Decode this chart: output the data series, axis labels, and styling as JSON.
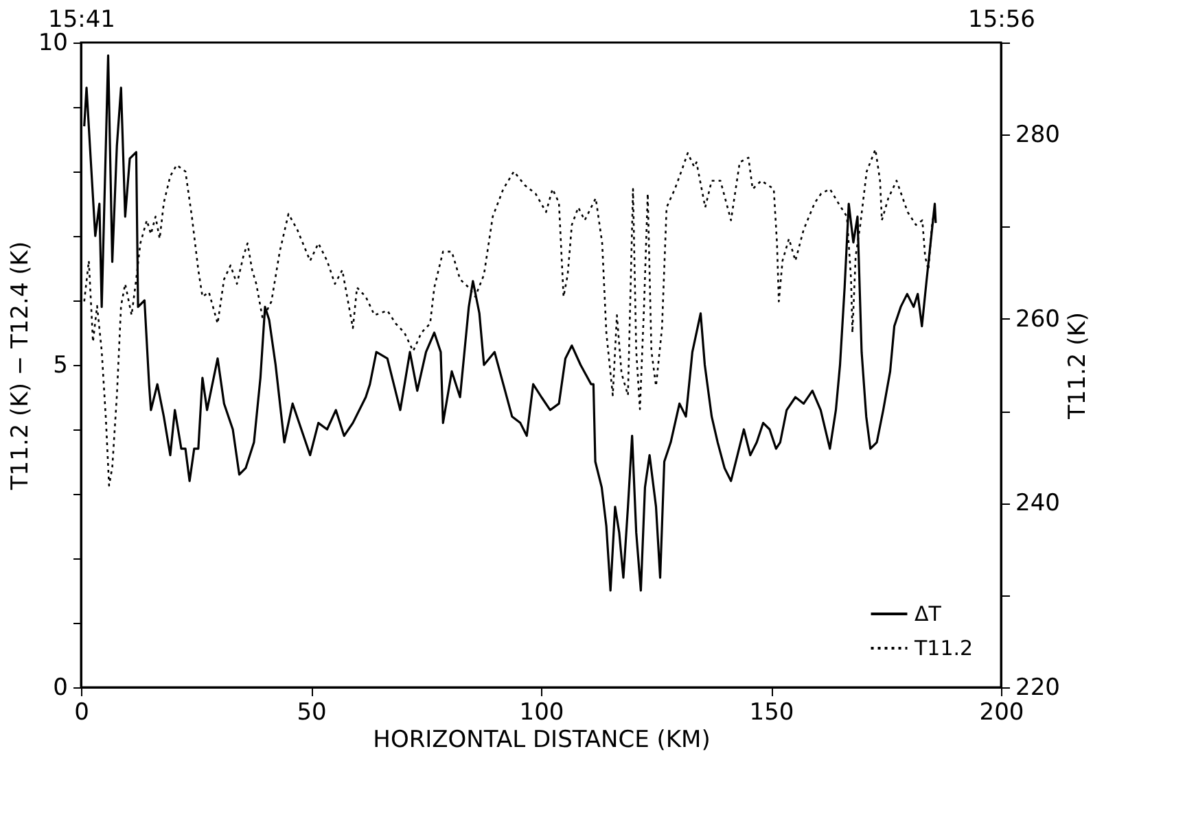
{
  "chart_data": {
    "type": "line",
    "xlabel": "HORIZONTAL DISTANCE (KM)",
    "ylabel": "T11.2 (K) − T12.4 (K)",
    "y2label": "T11.2 (K)",
    "xlim": [
      0,
      200
    ],
    "xticks": [
      0,
      50,
      100,
      150,
      200
    ],
    "x2lim": [
      15.6833,
      15.9333
    ],
    "x2ticks": [
      {
        "value": 15.6833,
        "label": "15:41"
      },
      {
        "value": 15.9333,
        "label": "15:56"
      }
    ],
    "ylim": [
      0,
      10
    ],
    "yticks": [
      0,
      {
        "value": 1,
        "label": null
      },
      {
        "value": 2,
        "label": null
      },
      {
        "value": 3,
        "label": null
      },
      {
        "value": 4,
        "label": null
      },
      5,
      {
        "value": 6,
        "label": null
      },
      {
        "value": 7,
        "label": null
      },
      {
        "value": 8,
        "label": null
      },
      {
        "value": 9,
        "label": null
      },
      10
    ],
    "y2lim": [
      220,
      290
    ],
    "y2ticks": [
      220,
      {
        "value": 230,
        "label": null
      },
      240,
      {
        "value": 250,
        "label": null
      },
      260,
      {
        "value": 270,
        "label": null
      },
      280,
      {
        "value": 290,
        "label": null
      }
    ],
    "grid": false,
    "legend": "bottom right",
    "series": [
      {
        "name": "ΔT",
        "color": "#000000",
        "line_style": "solid",
        "x": [
          0.7,
          1.2,
          2.1,
          3.1,
          4.0,
          4.5,
          5.9,
          6.8,
          7.8,
          8.7,
          9.6,
          10.6,
          12.0,
          12.4,
          13.8,
          14.8,
          15.2,
          16.6,
          18.0,
          19.4,
          20.4,
          21.8,
          22.7,
          23.6,
          24.6,
          25.5,
          26.4,
          27.4,
          29.7,
          31.1,
          33.0,
          34.4,
          35.8,
          37.6,
          39.0,
          40.0,
          40.9,
          42.3,
          44.2,
          46.0,
          47.9,
          49.8,
          51.6,
          53.5,
          55.4,
          57.2,
          59.1,
          61.9,
          62.8,
          64.2,
          66.6,
          69.4,
          71.5,
          73.1,
          75.0,
          76.8,
          78.2,
          78.7,
          80.6,
          82.4,
          84.3,
          85.2,
          86.6,
          87.6,
          89.9,
          91.8,
          93.7,
          95.5,
          96.9,
          98.3,
          100.1,
          102.0,
          103.9,
          105.3,
          106.7,
          108.6,
          110.9,
          111.4,
          111.8,
          113.2,
          114.2,
          115.1,
          116.1,
          117.0,
          117.9,
          118.9,
          119.8,
          120.7,
          121.7,
          122.6,
          123.6,
          125.0,
          125.9,
          126.8,
          128.2,
          130.1,
          131.5,
          132.9,
          134.7,
          135.6,
          137.1,
          138.4,
          139.9,
          141.3,
          142.7,
          144.1,
          145.5,
          146.9,
          148.3,
          149.7,
          151.1,
          152.0,
          153.4,
          155.3,
          157.1,
          159.0,
          160.8,
          162.8,
          164.1,
          165.0,
          166.0,
          166.9,
          167.9,
          168.8,
          169.7,
          170.7,
          171.6,
          173.0,
          174.4,
          175.9,
          176.8,
          178.2,
          179.6,
          181.0,
          181.9,
          182.8,
          183.8,
          184.7,
          185.6,
          185.8
        ],
        "values": [
          8.7,
          9.3,
          8.2,
          7.0,
          7.5,
          5.9,
          9.8,
          6.6,
          8.4,
          9.3,
          7.3,
          8.2,
          8.3,
          5.9,
          6.0,
          4.7,
          4.3,
          4.7,
          4.2,
          3.6,
          4.3,
          3.7,
          3.7,
          3.2,
          3.7,
          3.7,
          4.8,
          4.3,
          5.1,
          4.4,
          4.0,
          3.3,
          3.4,
          3.8,
          4.8,
          5.9,
          5.7,
          5.0,
          3.8,
          4.4,
          4.0,
          3.6,
          4.1,
          4.0,
          4.3,
          3.9,
          4.1,
          4.5,
          4.7,
          5.2,
          5.1,
          4.3,
          5.2,
          4.6,
          5.2,
          5.5,
          5.2,
          4.1,
          4.9,
          4.5,
          5.9,
          6.3,
          5.8,
          5.0,
          5.2,
          4.7,
          4.2,
          4.1,
          3.9,
          4.7,
          4.5,
          4.3,
          4.4,
          5.1,
          5.3,
          5.0,
          4.7,
          4.7,
          3.5,
          3.1,
          2.5,
          1.5,
          2.8,
          2.4,
          1.7,
          2.8,
          3.9,
          2.4,
          1.5,
          3.1,
          3.6,
          2.8,
          1.7,
          3.5,
          3.8,
          4.4,
          4.2,
          5.2,
          5.8,
          5.0,
          4.2,
          3.8,
          3.4,
          3.2,
          3.6,
          4.0,
          3.6,
          3.8,
          4.1,
          4.0,
          3.7,
          3.8,
          4.3,
          4.5,
          4.4,
          4.6,
          4.3,
          3.7,
          4.3,
          5.0,
          6.2,
          7.5,
          6.9,
          7.3,
          5.2,
          4.2,
          3.7,
          3.8,
          4.3,
          4.9,
          5.6,
          5.9,
          6.1,
          5.9,
          6.1,
          5.6,
          6.3,
          6.9,
          7.5,
          7.2
        ]
      },
      {
        "name": "T11.2",
        "color": "#000000",
        "line_style": "dotted",
        "axis": "y2",
        "x": [
          0.7,
          1.7,
          2.6,
          3.5,
          4.5,
          5.4,
          6.1,
          6.8,
          7.8,
          8.7,
          9.6,
          11.0,
          12.0,
          12.9,
          14.3,
          15.2,
          16.2,
          17.1,
          18.0,
          19.4,
          20.8,
          22.7,
          24.1,
          25.5,
          26.4,
          27.8,
          29.7,
          31.1,
          32.5,
          33.9,
          35.3,
          36.2,
          37.2,
          38.1,
          39.5,
          41.4,
          43.2,
          45.1,
          47.0,
          49.8,
          51.6,
          53.5,
          55.2,
          56.8,
          59.1,
          60.0,
          61.9,
          63.8,
          66.6,
          68.4,
          70.3,
          72.2,
          74.0,
          75.9,
          76.8,
          78.7,
          80.6,
          82.4,
          84.3,
          85.7,
          87.6,
          89.5,
          91.8,
          94.1,
          96.5,
          98.8,
          101.1,
          102.5,
          103.9,
          104.9,
          105.8,
          106.7,
          108.1,
          109.5,
          111.9,
          113.3,
          114.2,
          115.6,
          116.5,
          117.5,
          118.9,
          120.0,
          120.7,
          121.5,
          122.4,
          123.2,
          124.0,
          125.0,
          126.3,
          127.3,
          129.1,
          130.5,
          131.9,
          133.3,
          133.8,
          135.7,
          137.1,
          139.0,
          141.3,
          143.2,
          145.1,
          146.0,
          147.9,
          150.6,
          151.3,
          151.7,
          152.5,
          153.9,
          155.3,
          157.1,
          159.5,
          160.9,
          162.8,
          164.6,
          166.5,
          167.4,
          167.7,
          168.4,
          169.4,
          170.8,
          172.7,
          173.7,
          174.1,
          175.5,
          177.3,
          179.7,
          181.5,
          182.9,
          183.5,
          184.2,
          185.0,
          185.6
        ],
        "values": [
          261.9,
          266.3,
          257.5,
          261.4,
          256.5,
          249.2,
          241.9,
          243.9,
          251.7,
          261.4,
          263.8,
          260.4,
          264.3,
          268.2,
          270.7,
          269.2,
          271.1,
          268.7,
          272.6,
          275.5,
          276.7,
          276.0,
          271.1,
          265.3,
          262.4,
          262.9,
          259.5,
          264.3,
          265.8,
          263.8,
          266.8,
          268.2,
          265.3,
          263.8,
          260.0,
          261.9,
          267.3,
          271.4,
          269.7,
          266.3,
          268.2,
          266.3,
          263.8,
          265.3,
          259.0,
          263.4,
          262.4,
          260.4,
          260.9,
          259.5,
          258.5,
          256.5,
          258.5,
          259.5,
          263.4,
          267.3,
          267.3,
          264.3,
          263.4,
          262.4,
          264.8,
          271.1,
          274.1,
          276.0,
          274.5,
          273.6,
          271.6,
          274.1,
          272.6,
          262.4,
          264.8,
          270.2,
          272.1,
          270.7,
          273.1,
          268.2,
          258.5,
          251.7,
          260.4,
          254.1,
          251.7,
          274.1,
          256.5,
          250.2,
          261.4,
          273.6,
          256.5,
          252.7,
          259.0,
          272.1,
          274.1,
          276.0,
          278.0,
          276.5,
          277.0,
          272.1,
          275.0,
          275.0,
          270.7,
          277.0,
          277.5,
          274.1,
          275.0,
          274.1,
          268.2,
          261.9,
          266.3,
          268.7,
          266.3,
          269.7,
          272.6,
          273.6,
          274.1,
          272.6,
          271.1,
          264.3,
          258.5,
          266.8,
          270.2,
          276.0,
          278.4,
          275.0,
          270.7,
          273.1,
          275.0,
          271.6,
          270.2,
          270.7,
          266.8,
          265.3,
          270.2,
          272.1
        ]
      }
    ]
  }
}
